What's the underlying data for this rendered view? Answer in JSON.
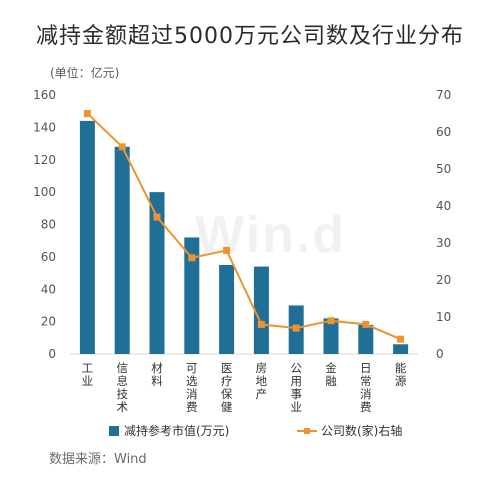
{
  "title": "减持金额超过5000万元公司数及行业分布",
  "unit_label": "(单位：亿元)",
  "watermark": "Win.d",
  "source": "数据来源：Wind",
  "colors": {
    "bar": "#1f6f96",
    "line": "#f0922e",
    "axis": "#d8d8d8",
    "text": "#555555"
  },
  "chart_data": {
    "type": "bar",
    "categories": [
      "工业",
      "信息技术",
      "材料",
      "可选消费",
      "医疗保健",
      "房地产",
      "公用事业",
      "金融",
      "日常消费",
      "能源"
    ],
    "series": [
      {
        "name": "减持参考市值(万元)",
        "type": "bar",
        "axis": "left",
        "values": [
          144,
          128,
          100,
          72,
          55,
          54,
          30,
          22,
          18,
          6
        ]
      },
      {
        "name": "公司数(家)右轴",
        "type": "line",
        "axis": "right",
        "values": [
          65,
          56,
          37,
          26,
          28,
          8,
          7,
          9,
          8,
          4
        ]
      }
    ],
    "y_left": {
      "min": 0,
      "max": 160,
      "ticks": [
        0,
        20,
        40,
        60,
        80,
        100,
        120,
        140,
        160
      ]
    },
    "y_right": {
      "min": 0,
      "max": 70,
      "ticks": [
        0,
        10,
        20,
        30,
        40,
        50,
        60,
        70
      ]
    },
    "legend_position": "bottom",
    "grid": false
  }
}
